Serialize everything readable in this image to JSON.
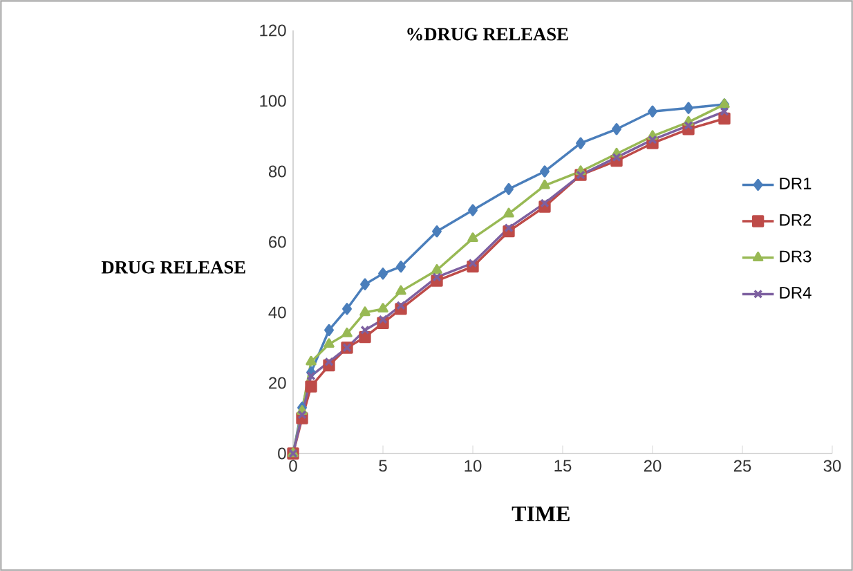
{
  "chart_data": {
    "type": "line",
    "title": "%DRUG RELEASE",
    "xlabel": "TIME",
    "ylabel": "DRUG RELEASE",
    "x": [
      0,
      0.5,
      1,
      2,
      3,
      4,
      5,
      6,
      8,
      10,
      12,
      14,
      16,
      18,
      20,
      22,
      24
    ],
    "series": [
      {
        "name": "DR1",
        "color": "#4a7ebb",
        "marker": "diamond",
        "values": [
          0,
          13,
          23,
          35,
          41,
          48,
          51,
          53,
          63,
          69,
          75,
          80,
          88,
          92,
          97,
          98,
          99
        ]
      },
      {
        "name": "DR2",
        "color": "#be4b48",
        "marker": "square",
        "values": [
          0,
          10,
          19,
          25,
          30,
          33,
          37,
          41,
          49,
          53,
          63,
          70,
          79,
          83,
          88,
          92,
          95
        ]
      },
      {
        "name": "DR3",
        "color": "#98b954",
        "marker": "triangle",
        "values": [
          0,
          12,
          26,
          31,
          34,
          40,
          41,
          46,
          52,
          61,
          68,
          76,
          80,
          85,
          90,
          94,
          99
        ]
      },
      {
        "name": "DR4",
        "color": "#7d60a0",
        "marker": "cross",
        "values": [
          0,
          11,
          22,
          26,
          30,
          35,
          38,
          42,
          50,
          54,
          64,
          71,
          79,
          84,
          89,
          93,
          97
        ]
      }
    ],
    "xlim": [
      0,
      30
    ],
    "xticks": [
      0,
      5,
      10,
      15,
      20,
      25,
      30
    ],
    "ylim": [
      0,
      120
    ],
    "yticks": [
      0,
      20,
      40,
      60,
      80,
      100,
      120
    ],
    "grid": false,
    "legend": "right",
    "line_style": "solid"
  }
}
